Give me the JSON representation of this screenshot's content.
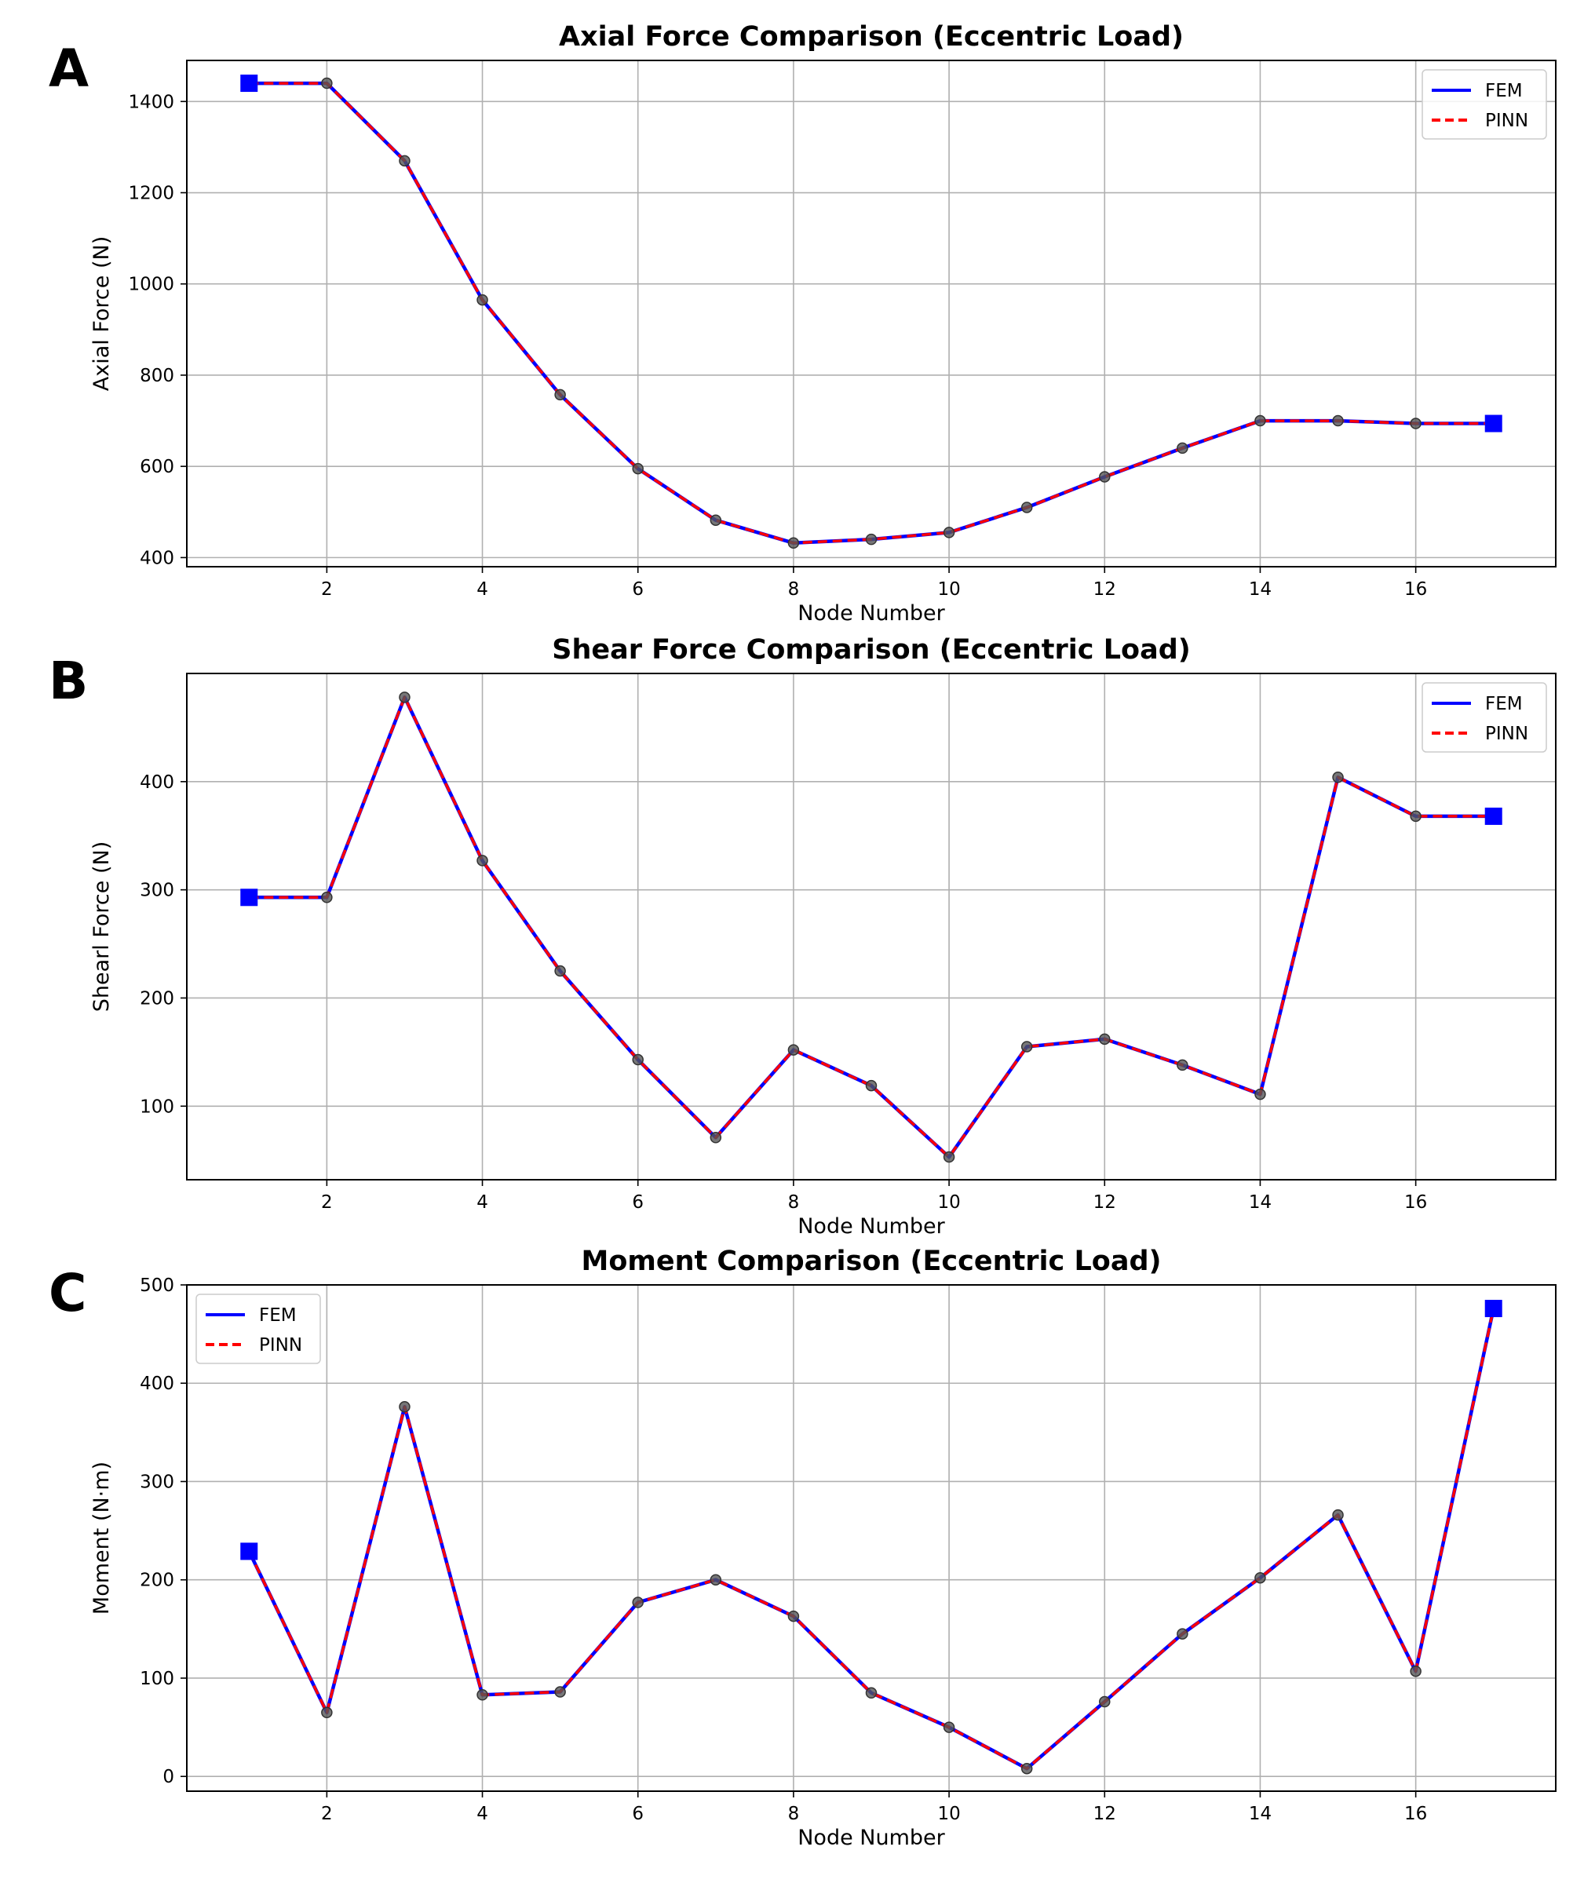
{
  "chart_data": [
    {
      "panel": "A",
      "type": "line",
      "title": "Axial Force Comparison (Eccentric Load)",
      "xlabel": "Node Number",
      "ylabel": "Axial Force (N)",
      "xlim": [
        0.2,
        17.8
      ],
      "ylim": [
        380,
        1490
      ],
      "xticks": [
        2,
        4,
        6,
        8,
        10,
        12,
        14,
        16
      ],
      "yticks": [
        400,
        600,
        800,
        1000,
        1200,
        1400
      ],
      "grid": true,
      "legend_position": "top-right",
      "x": [
        1,
        2,
        3,
        4,
        5,
        6,
        7,
        8,
        9,
        10,
        11,
        12,
        13,
        14,
        15,
        16,
        17
      ],
      "series": [
        {
          "name": "FEM",
          "color": "#0000ff",
          "style": "solid",
          "values": [
            1440,
            1440,
            1270,
            965,
            757,
            595,
            482,
            432,
            440,
            455,
            510,
            577,
            640,
            700,
            700,
            694,
            694
          ]
        },
        {
          "name": "PINN",
          "color": "#ff0000",
          "style": "dashed",
          "values": [
            1440,
            1440,
            1270,
            965,
            757,
            595,
            482,
            432,
            440,
            455,
            510,
            577,
            640,
            700,
            700,
            694,
            694
          ]
        }
      ],
      "endpoint_markers": [
        [
          1,
          1440
        ],
        [
          17,
          694
        ]
      ]
    },
    {
      "panel": "B",
      "type": "line",
      "title": "Shear Force Comparison (Eccentric Load)",
      "xlabel": "Node Number",
      "ylabel": "Shearl Force (N)",
      "xlim": [
        0.2,
        17.8
      ],
      "ylim": [
        32,
        500
      ],
      "xticks": [
        2,
        4,
        6,
        8,
        10,
        12,
        14,
        16
      ],
      "yticks": [
        100,
        200,
        300,
        400
      ],
      "grid": true,
      "legend_position": "top-right",
      "x": [
        1,
        2,
        3,
        4,
        5,
        6,
        7,
        8,
        9,
        10,
        11,
        12,
        13,
        14,
        15,
        16,
        17
      ],
      "series": [
        {
          "name": "FEM",
          "color": "#0000ff",
          "style": "solid",
          "values": [
            293,
            293,
            478,
            327,
            225,
            143,
            71,
            152,
            119,
            53,
            155,
            162,
            138,
            111,
            404,
            368,
            368
          ]
        },
        {
          "name": "PINN",
          "color": "#ff0000",
          "style": "dashed",
          "values": [
            293,
            293,
            478,
            327,
            225,
            143,
            71,
            152,
            119,
            53,
            155,
            162,
            138,
            111,
            404,
            368,
            368
          ]
        }
      ],
      "endpoint_markers": [
        [
          1,
          293
        ],
        [
          17,
          368
        ]
      ]
    },
    {
      "panel": "C",
      "type": "line",
      "title": "Moment Comparison (Eccentric Load)",
      "xlabel": "Node Number",
      "ylabel": "Moment (N·m)",
      "xlim": [
        0.2,
        17.8
      ],
      "ylim": [
        -15,
        500
      ],
      "xticks": [
        2,
        4,
        6,
        8,
        10,
        12,
        14,
        16
      ],
      "yticks": [
        0,
        100,
        200,
        300,
        400,
        500
      ],
      "grid": true,
      "legend_position": "top-left",
      "x": [
        1,
        2,
        3,
        4,
        5,
        6,
        7,
        8,
        9,
        10,
        11,
        12,
        13,
        14,
        15,
        16,
        17
      ],
      "series": [
        {
          "name": "FEM",
          "color": "#0000ff",
          "style": "solid",
          "values": [
            229,
            65,
            376,
            83,
            86,
            177,
            200,
            163,
            85,
            50,
            8,
            76,
            145,
            202,
            266,
            107,
            476
          ]
        },
        {
          "name": "PINN",
          "color": "#ff0000",
          "style": "dashed",
          "values": [
            229,
            65,
            376,
            83,
            86,
            177,
            200,
            163,
            85,
            50,
            8,
            76,
            145,
            202,
            266,
            107,
            476
          ]
        }
      ],
      "endpoint_markers": [
        [
          1,
          229
        ],
        [
          17,
          476
        ]
      ]
    }
  ]
}
